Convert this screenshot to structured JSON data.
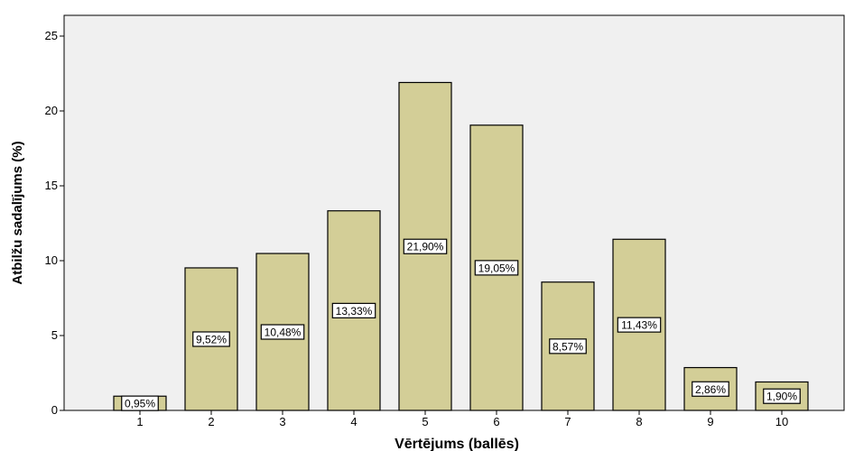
{
  "chart_data": {
    "type": "bar",
    "categories": [
      "1",
      "2",
      "3",
      "4",
      "5",
      "6",
      "7",
      "8",
      "9",
      "10"
    ],
    "values": [
      0.95,
      9.52,
      10.48,
      13.33,
      21.9,
      19.05,
      8.57,
      11.43,
      2.86,
      1.9
    ],
    "data_labels": [
      "0,95%",
      "9,52%",
      "10,48%",
      "13,33%",
      "21,90%",
      "19,05%",
      "8,57%",
      "11,43%",
      "2,86%",
      "1,90%"
    ],
    "xlabel": "Vērtējums (ballēs)",
    "ylabel": "Atbilžu sadalījums (%)",
    "ylim": [
      0,
      25
    ],
    "yticks": [
      "0",
      "5",
      "10",
      "15",
      "20",
      "25"
    ],
    "grid": false,
    "colors": {
      "plot_background": "#f0f0f0",
      "bar_fill": "#d3ce97",
      "bar_stroke": "#000000",
      "label_box": "#ffffff"
    }
  }
}
